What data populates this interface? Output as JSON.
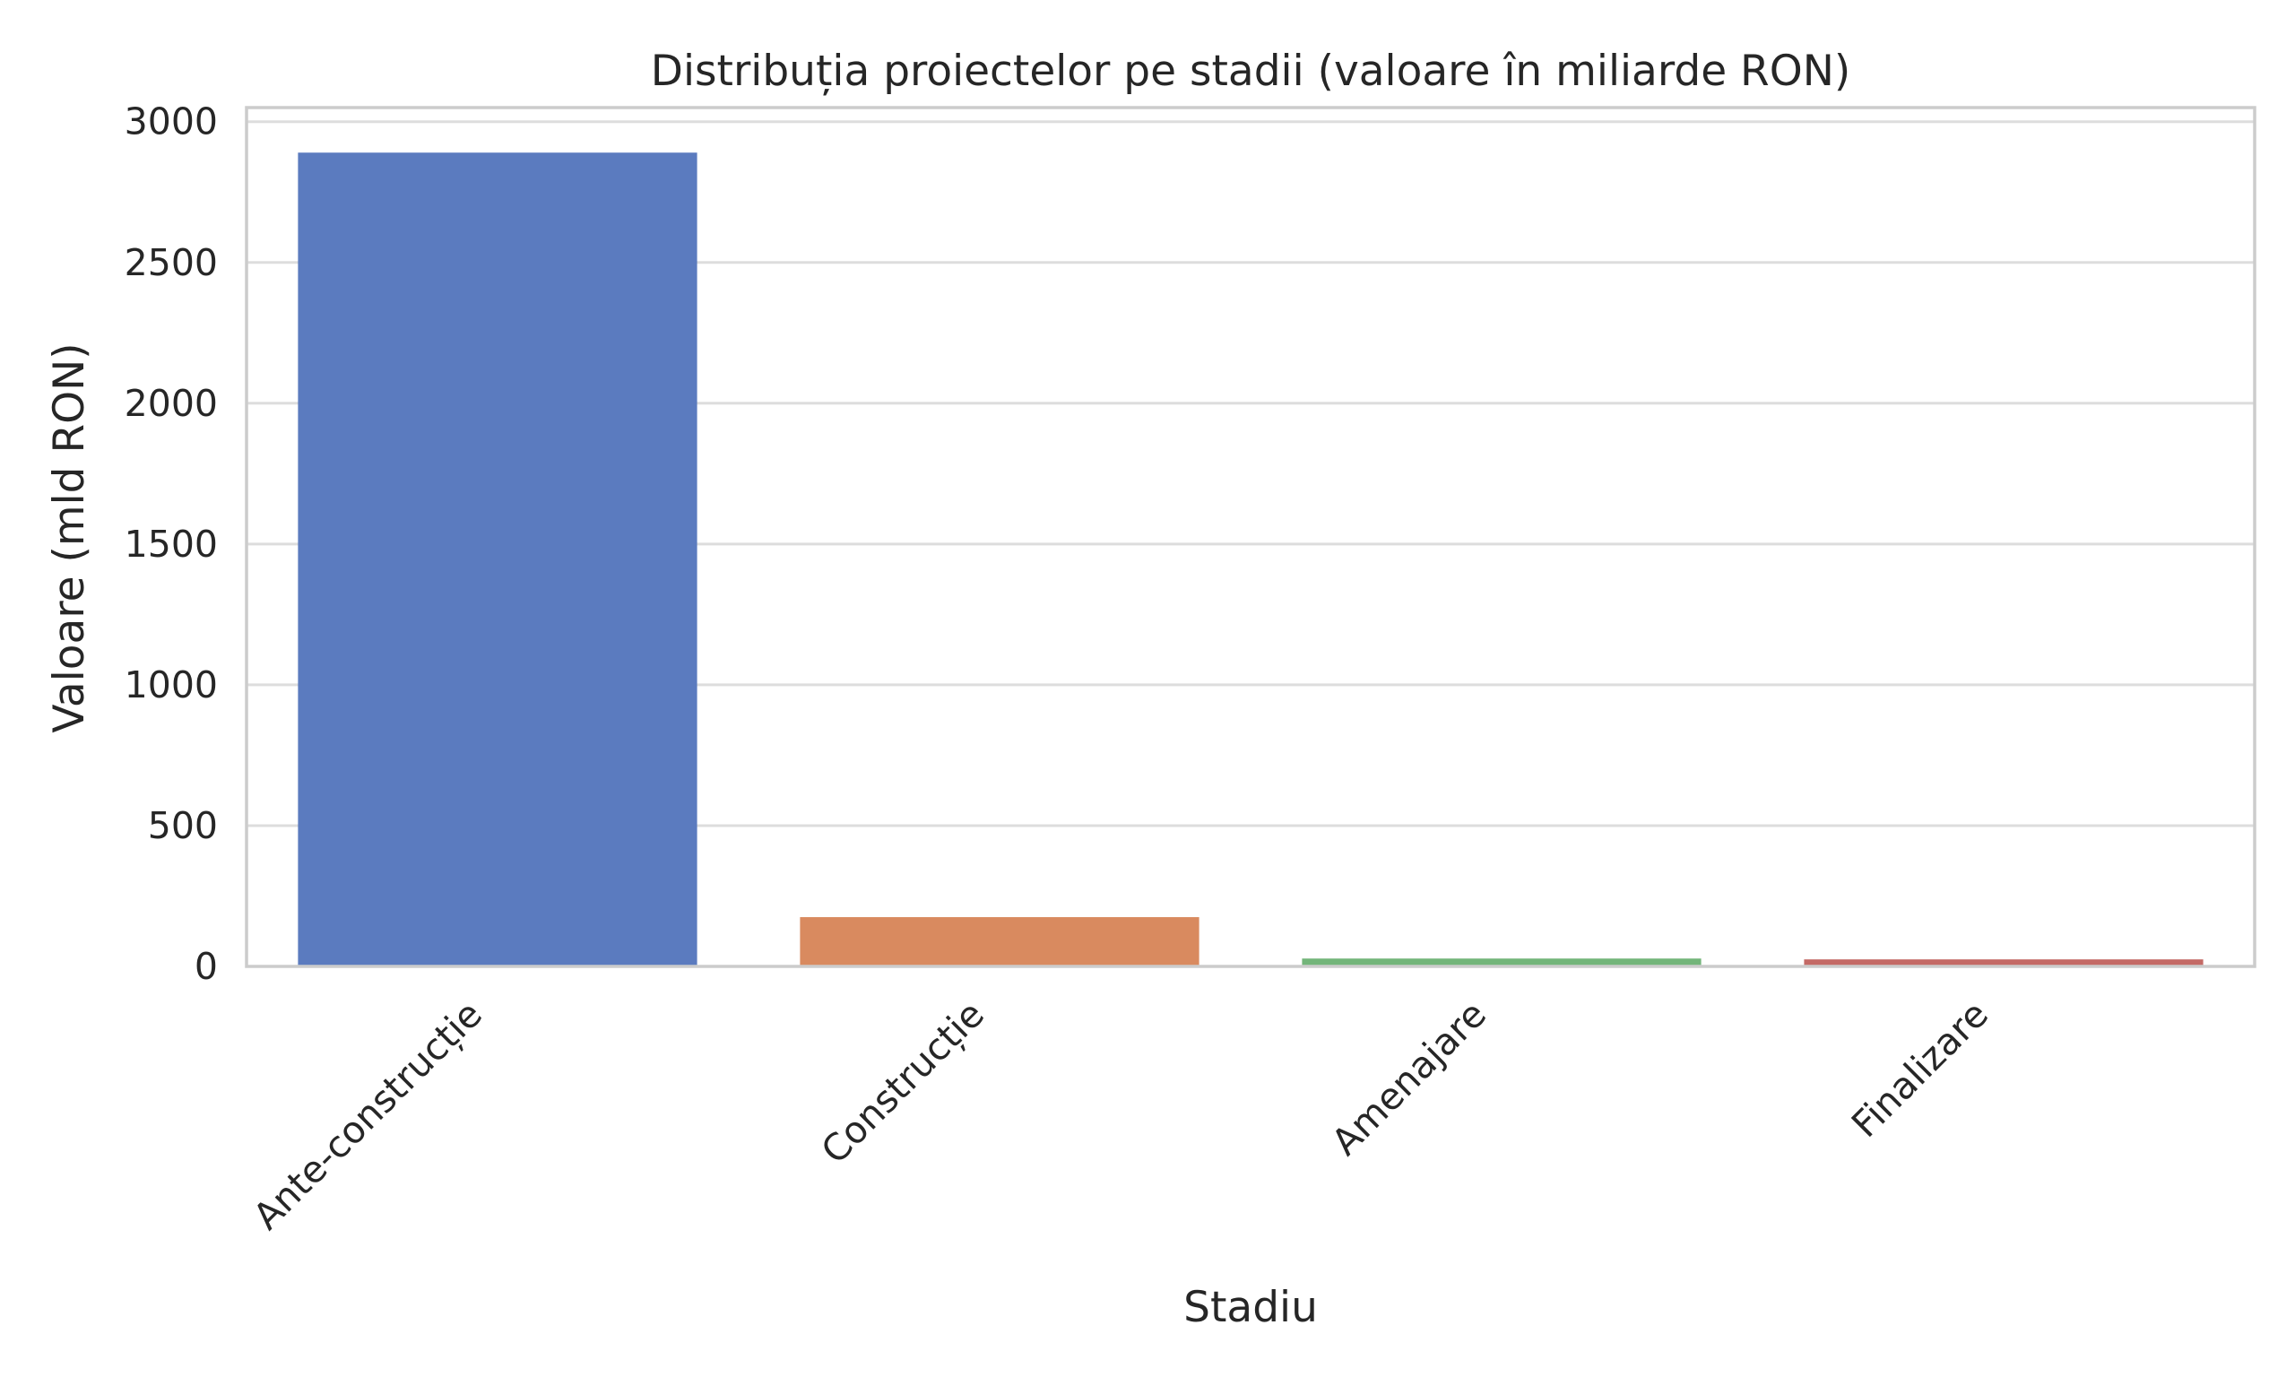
{
  "chart_data": {
    "type": "bar",
    "title": "Distribuția proiectelor pe stadii (valoare în miliarde RON)",
    "xlabel": "Stadiu",
    "ylabel": "Valoare (mld RON)",
    "categories": [
      "Ante-construcție",
      "Construcție",
      "Amenajare",
      "Finalizare"
    ],
    "values": [
      2890,
      175,
      28,
      25
    ],
    "colors": [
      "#5b7bbf",
      "#d98a5f",
      "#73b57a",
      "#c46a66"
    ],
    "ylim": [
      0,
      3050
    ],
    "yticks": [
      0,
      500,
      1000,
      1500,
      2000,
      2500,
      3000
    ],
    "ytick_labels": [
      "0",
      "500",
      "1000",
      "1500",
      "2000",
      "2500",
      "3000"
    ],
    "grid": true,
    "legend": "none"
  }
}
